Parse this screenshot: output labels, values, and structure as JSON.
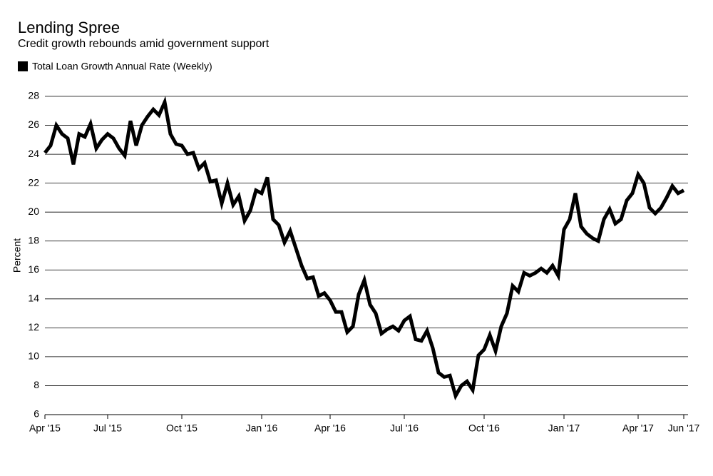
{
  "chart_data": {
    "type": "line",
    "title": "Lending Spree",
    "subtitle": "Credit growth rebounds amid government support",
    "y_label": "Percent",
    "categories": [
      "Apr '15",
      null,
      null,
      null,
      null,
      null,
      null,
      null,
      null,
      null,
      null,
      "Jul '15",
      null,
      null,
      null,
      null,
      null,
      null,
      null,
      null,
      null,
      null,
      null,
      null,
      "Oct '15",
      null,
      null,
      null,
      null,
      null,
      null,
      null,
      null,
      null,
      null,
      null,
      null,
      null,
      "Jan '16",
      null,
      null,
      null,
      null,
      null,
      null,
      null,
      null,
      null,
      null,
      null,
      "Apr '16",
      null,
      null,
      null,
      null,
      null,
      null,
      null,
      null,
      null,
      null,
      null,
      null,
      "Jul '16",
      null,
      null,
      null,
      null,
      null,
      null,
      null,
      null,
      null,
      null,
      null,
      null,
      null,
      "Oct '16",
      null,
      null,
      null,
      null,
      null,
      null,
      null,
      null,
      null,
      null,
      null,
      null,
      null,
      "Jan '17",
      null,
      null,
      null,
      null,
      null,
      null,
      null,
      null,
      null,
      null,
      null,
      null,
      "Apr '17",
      null,
      null,
      null,
      null,
      null,
      null,
      null,
      "Jun '17"
    ],
    "series": [
      {
        "name": "Total Loan Growth Annual Rate (Weekly)",
        "color": "#000000",
        "values": [
          24.1,
          24.6,
          26.0,
          25.4,
          25.1,
          23.3,
          25.4,
          25.2,
          26.1,
          24.4,
          25.0,
          25.4,
          25.1,
          24.4,
          23.9,
          26.3,
          24.6,
          26.0,
          26.6,
          27.1,
          26.7,
          27.6,
          25.4,
          24.7,
          24.6,
          24.0,
          24.1,
          23.0,
          23.4,
          22.1,
          22.2,
          20.6,
          22.0,
          20.5,
          21.1,
          19.4,
          20.1,
          21.5,
          21.3,
          22.4,
          19.5,
          19.1,
          17.9,
          18.7,
          17.5,
          16.3,
          15.4,
          15.5,
          14.2,
          14.4,
          13.9,
          13.1,
          13.1,
          11.7,
          12.1,
          14.3,
          15.3,
          13.6,
          13.0,
          11.6,
          11.9,
          12.1,
          11.8,
          12.5,
          12.8,
          11.2,
          11.1,
          11.8,
          10.6,
          8.9,
          8.6,
          8.7,
          7.3,
          8.0,
          8.3,
          7.7,
          10.1,
          10.5,
          11.5,
          10.4,
          12.1,
          13.0,
          14.9,
          14.5,
          15.8,
          15.6,
          15.8,
          16.1,
          15.8,
          16.3,
          15.6,
          18.8,
          19.5,
          21.3,
          19.0,
          18.5,
          18.2,
          18.0,
          19.5,
          20.2,
          19.2,
          19.5,
          20.8,
          21.3,
          22.6,
          22.0,
          20.3,
          19.9,
          20.3,
          21.0,
          21.8,
          21.3,
          21.5
        ]
      }
    ],
    "ylim": [
      6,
      28
    ],
    "yticks": [
      6,
      8,
      10,
      12,
      14,
      16,
      18,
      20,
      22,
      24,
      26,
      28
    ],
    "grid": true
  }
}
